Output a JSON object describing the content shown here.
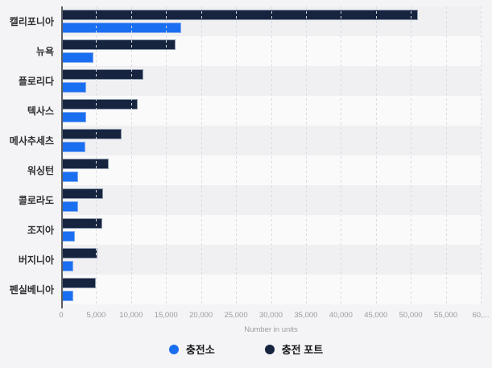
{
  "chart_data": {
    "type": "bar",
    "orientation": "horizontal",
    "title": "",
    "categories": [
      "캘리포니아",
      "뉴욕",
      "플로리다",
      "텍사스",
      "메사추세츠",
      "워싱턴",
      "콜로라도",
      "조지아",
      "버지니아",
      "펜실베니아"
    ],
    "series": [
      {
        "name": "충전소",
        "color": "#1a6ef0",
        "border_color": "#7fa9f0",
        "values": [
          17200,
          4600,
          3600,
          3600,
          3500,
          2400,
          2400,
          2000,
          1700,
          1700
        ]
      },
      {
        "name": "충전 포트",
        "color": "#16243f",
        "border_color": "#8d99ad",
        "values": [
          51000,
          16400,
          11800,
          10900,
          8600,
          6800,
          6000,
          5900,
          5200,
          5000
        ]
      }
    ],
    "bar_render_order": [
      "충전 포트",
      "충전소"
    ],
    "xlabel": "Number in units",
    "ylabel": "",
    "xlim": [
      0,
      60000
    ],
    "tick_step": 5000,
    "tick_labels": [
      "0",
      "5,000",
      "10,000",
      "15,000",
      "20,000",
      "25,000",
      "30,000",
      "35,000",
      "40,000",
      "45,000",
      "50,000",
      "55,000",
      "60,..."
    ],
    "grid": "vertical-dashed",
    "legend_position": "bottom",
    "row_stripe_colors": [
      "#f0f0f3",
      "#fafafb"
    ]
  }
}
